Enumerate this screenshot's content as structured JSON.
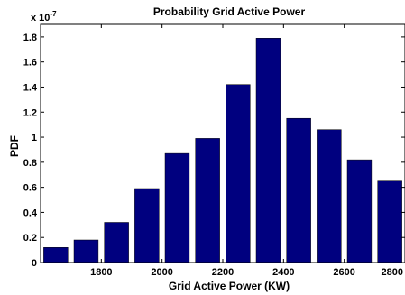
{
  "chart_data": {
    "type": "bar",
    "title": "Probability Grid Active Power",
    "xlabel": "Grid Active Power (KW)",
    "ylabel": "PDF",
    "y_multiplier_label": "x 10",
    "y_multiplier_exponent": "-7",
    "x": [
      1650,
      1750,
      1850,
      1950,
      2050,
      2150,
      2250,
      2350,
      2450,
      2550,
      2650,
      2750
    ],
    "values": [
      0.12,
      0.18,
      0.32,
      0.59,
      0.87,
      0.99,
      1.42,
      1.79,
      1.15,
      1.06,
      0.82,
      0.65
    ],
    "value_scale": "1e-7",
    "xlim": [
      1600,
      2800
    ],
    "ylim": [
      0,
      1.9
    ],
    "x_ticks": [
      1800,
      2000,
      2200,
      2400,
      2600,
      2800
    ],
    "x_tick_labels": [
      "1800",
      "2000",
      "2200",
      "2400",
      "2600",
      "2800"
    ],
    "y_ticks": [
      0,
      0.2,
      0.4,
      0.6,
      0.8,
      1,
      1.2,
      1.4,
      1.6,
      1.8
    ],
    "y_tick_labels": [
      "0",
      "0.2",
      "0.4",
      "0.6",
      "0.8",
      "1",
      "1.2",
      "1.4",
      "1.6",
      "1.8"
    ],
    "bar_color": "#00007f",
    "grid": false,
    "legend": "none"
  }
}
